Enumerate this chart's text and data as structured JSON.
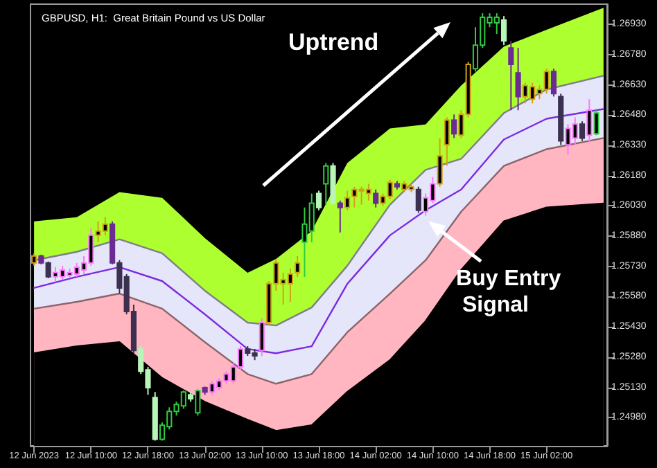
{
  "chart_data": {
    "type": "candlestick",
    "title": "GBPUSD, H1:  Great Britain Pound vs US Dollar",
    "annotations": [
      "Uptrend",
      {
        "text": "Buy Entry Signal",
        "x": "2023-06-14T09:00",
        "y": 1.25981
      }
    ],
    "xlim": [
      "2023-06-12T01:30",
      "2023-06-15T10:30"
    ],
    "xticks": [
      {
        "value": "2023-06-12T02:00",
        "label": "12 Jun 2023"
      },
      {
        "value": "2023-06-12T10:00",
        "label": "12 Jun 10:00"
      },
      {
        "value": "2023-06-12T18:00",
        "label": "12 Jun 18:00"
      },
      {
        "value": "2023-06-13T02:00",
        "label": "13 Jun 02:00"
      },
      {
        "value": "2023-06-13T10:00",
        "label": "13 Jun 10:00"
      },
      {
        "value": "2023-06-13T18:00",
        "label": "13 Jun 18:00"
      },
      {
        "value": "2023-06-14T02:00",
        "label": "14 Jun 02:00"
      },
      {
        "value": "2023-06-14T10:00",
        "label": "14 Jun 10:00"
      },
      {
        "value": "2023-06-14T18:00",
        "label": "14 Jun 18:00"
      },
      {
        "value": "2023-06-15T02:00",
        "label": "15 Jun 02:00"
      }
    ],
    "ylim": [
      1.2484,
      1.2703
    ],
    "yticks": [
      {
        "value": 1.2498,
        "label": "1.24980"
      },
      {
        "value": 1.2513,
        "label": "1.25130"
      },
      {
        "value": 1.2528,
        "label": "1.25280"
      },
      {
        "value": 1.2543,
        "label": "1.25430"
      },
      {
        "value": 1.2558,
        "label": "1.25580"
      },
      {
        "value": 1.2573,
        "label": "1.25730"
      },
      {
        "value": 1.2588,
        "label": "1.25880"
      },
      {
        "value": 1.2603,
        "label": "1.26030"
      },
      {
        "value": 1.2618,
        "label": "1.26180"
      },
      {
        "value": 1.2633,
        "label": "1.26330"
      },
      {
        "value": 1.2648,
        "label": "1.26480"
      },
      {
        "value": 1.2663,
        "label": "1.26630"
      },
      {
        "value": 1.2678,
        "label": "1.26780"
      },
      {
        "value": 1.2693,
        "label": "1.26930"
      }
    ],
    "series": [
      {
        "type": "area",
        "color": "#adff2f",
        "x": [
          "2023-06-12T02:00",
          "2023-06-12T08:00",
          "2023-06-12T14:00",
          "2023-06-12T20:00",
          "2023-06-13T02:00",
          "2023-06-13T08:00",
          "2023-06-13T12:00",
          "2023-06-13T17:00",
          "2023-06-13T22:00",
          "2023-06-14T04:00",
          "2023-06-14T09:00",
          "2023-06-14T14:00",
          "2023-06-14T20:00",
          "2023-06-15T02:00",
          "2023-06-15T10:00"
        ],
        "values": [
          1.25953,
          1.25974,
          1.26098,
          1.2607,
          1.2587,
          1.25698,
          1.25767,
          1.25905,
          1.26242,
          1.26414,
          1.26434,
          1.26627,
          1.2682,
          1.26903,
          1.27012
        ]
      },
      {
        "type": "area",
        "color": "#e6e6fa",
        "x": [
          "2023-06-12T02:00",
          "2023-06-12T08:00",
          "2023-06-12T14:00",
          "2023-06-12T20:00",
          "2023-06-13T02:00",
          "2023-06-13T08:00",
          "2023-06-13T12:00",
          "2023-06-13T17:00",
          "2023-06-13T22:00",
          "2023-06-14T04:00",
          "2023-06-14T09:00",
          "2023-06-14T14:00",
          "2023-06-14T20:00",
          "2023-06-15T02:00",
          "2023-06-15T10:00"
        ],
        "values": [
          1.2576,
          1.25802,
          1.25864,
          1.25795,
          1.25609,
          1.25451,
          1.25437,
          1.25526,
          1.25733,
          1.26036,
          1.26208,
          1.26263,
          1.2649,
          1.26607,
          1.26675
        ]
      },
      {
        "type": "area",
        "color": "#ffb6c1",
        "x": [
          "2023-06-12T02:00",
          "2023-06-12T08:00",
          "2023-06-12T14:00",
          "2023-06-12T20:00",
          "2023-06-13T02:00",
          "2023-06-13T08:00",
          "2023-06-13T12:00",
          "2023-06-13T17:00",
          "2023-06-13T22:00",
          "2023-06-14T04:00",
          "2023-06-14T09:00",
          "2023-06-14T14:00",
          "2023-06-14T20:00",
          "2023-06-15T02:00",
          "2023-06-15T10:00"
        ],
        "values": [
          1.2552,
          1.25554,
          1.25595,
          1.2552,
          1.25354,
          1.25196,
          1.25148,
          1.25196,
          1.25403,
          1.25595,
          1.2576,
          1.26001,
          1.26228,
          1.26311,
          1.26366
        ]
      },
      {
        "type": "area",
        "color": "#000000",
        "x": [
          "2023-06-12T02:00",
          "2023-06-12T08:00",
          "2023-06-12T14:00",
          "2023-06-12T20:00",
          "2023-06-13T02:00",
          "2023-06-13T08:00",
          "2023-06-13T12:00",
          "2023-06-13T17:00",
          "2023-06-13T22:00",
          "2023-06-14T04:00",
          "2023-06-14T09:00",
          "2023-06-14T14:00",
          "2023-06-14T20:00",
          "2023-06-15T02:00",
          "2023-06-15T10:00"
        ],
        "values": [
          1.25299,
          1.25334,
          1.25354,
          1.25176,
          1.25058,
          1.24969,
          1.24914,
          1.24942,
          1.25107,
          1.25265,
          1.25458,
          1.25712,
          1.25953,
          1.26022,
          1.26042
        ]
      },
      {
        "type": "line",
        "color": "#7b2be0",
        "x": [
          "2023-06-12T02:00",
          "2023-06-12T08:00",
          "2023-06-12T14:00",
          "2023-06-12T20:00",
          "2023-06-13T02:00",
          "2023-06-13T08:00",
          "2023-06-13T12:00",
          "2023-06-13T17:00",
          "2023-06-13T22:00",
          "2023-06-14T04:00",
          "2023-06-14T09:00",
          "2023-06-14T14:00",
          "2023-06-14T20:00",
          "2023-06-15T02:00",
          "2023-06-15T10:00"
        ],
        "values": [
          1.25623,
          1.25678,
          1.25726,
          1.25657,
          1.25492,
          1.2532,
          1.25299,
          1.25334,
          1.25643,
          1.25884,
          1.26008,
          1.26111,
          1.26359,
          1.26462,
          1.2651
        ]
      },
      {
        "x": [
          "2023-06-12T02:00",
          "2023-06-12T03:00",
          "2023-06-12T04:00",
          "2023-06-12T05:00",
          "2023-06-12T06:00",
          "2023-06-12T07:00",
          "2023-06-12T08:00",
          "2023-06-12T09:00",
          "2023-06-12T10:00",
          "2023-06-12T11:00",
          "2023-06-12T12:00",
          "2023-06-12T13:00",
          "2023-06-12T14:00",
          "2023-06-12T15:00",
          "2023-06-12T16:00",
          "2023-06-12T17:00",
          "2023-06-12T18:00",
          "2023-06-12T19:00",
          "2023-06-12T20:00",
          "2023-06-12T21:00",
          "2023-06-12T22:00",
          "2023-06-12T23:00",
          "2023-06-13T00:00",
          "2023-06-13T01:00",
          "2023-06-13T02:00",
          "2023-06-13T03:00",
          "2023-06-13T04:00",
          "2023-06-13T05:00",
          "2023-06-13T06:00",
          "2023-06-13T07:00",
          "2023-06-13T08:00",
          "2023-06-13T09:00",
          "2023-06-13T10:00",
          "2023-06-13T11:00",
          "2023-06-13T12:00",
          "2023-06-13T13:00",
          "2023-06-13T14:00",
          "2023-06-13T15:00",
          "2023-06-13T16:00",
          "2023-06-13T17:00",
          "2023-06-13T18:00",
          "2023-06-13T19:00",
          "2023-06-13T20:00",
          "2023-06-13T21:00",
          "2023-06-13T22:00",
          "2023-06-13T23:00",
          "2023-06-14T00:00",
          "2023-06-14T01:00",
          "2023-06-14T02:00",
          "2023-06-14T03:00",
          "2023-06-14T04:00",
          "2023-06-14T05:00",
          "2023-06-14T06:00",
          "2023-06-14T07:00",
          "2023-06-14T08:00",
          "2023-06-14T09:00",
          "2023-06-14T10:00",
          "2023-06-14T11:00",
          "2023-06-14T12:00",
          "2023-06-14T13:00",
          "2023-06-14T14:00",
          "2023-06-14T15:00",
          "2023-06-14T16:00",
          "2023-06-14T17:00",
          "2023-06-14T18:00",
          "2023-06-14T19:00",
          "2023-06-14T20:00",
          "2023-06-14T21:00",
          "2023-06-14T22:00",
          "2023-06-14T23:00",
          "2023-06-15T00:00",
          "2023-06-15T01:00",
          "2023-06-15T02:00",
          "2023-06-15T03:00",
          "2023-06-15T04:00",
          "2023-06-15T05:00",
          "2023-06-15T06:00",
          "2023-06-15T07:00",
          "2023-06-15T08:00",
          "2023-06-15T09:00"
        ],
        "colors": [
          "#d4a017",
          "#6a2c91",
          "#3b3050",
          "#ff77ff",
          "#ff77ff",
          "#ff77ff",
          "#ff77ff",
          "#ff77ff",
          "#ff77ff",
          "#d4a017",
          "#d4a017",
          "#6a2c91",
          "#3b3050",
          "#3b3050",
          "#3b3050",
          "#b8f5b8",
          "#b8f5b8",
          "#b8f5b8",
          "#2ecc40",
          "#2ecc40",
          "#2ecc40",
          "#2ecc40",
          "#b8f5b8",
          "#2ecc40",
          "#6a2c91",
          "#ff77ff",
          "#ff77ff",
          "#ff77ff",
          "#ff77ff",
          "#ff77ff",
          "#3b3050",
          "#3b3050",
          "#ff77ff",
          "#d4a017",
          "#d4a017",
          "#d4a017",
          "#d4a017",
          "#d4a017",
          "#2ecc40",
          "#2ecc40",
          "#b8f5b8",
          "#2ecc40",
          "#b8f5b8",
          "#6a2c91",
          "#d4a017",
          "#d4a017",
          "#d4a017",
          "#d4a017",
          "#6a2c91",
          "#d4a017",
          "#d4a017",
          "#6a2c91",
          "#d4a017",
          "#d4a017",
          "#3b3050",
          "#ff77ff",
          "#ff77ff",
          "#d4a017",
          "#d4a017",
          "#6a2c91",
          "#d4a017",
          "#d4a017",
          "#2ecc40",
          "#2ecc40",
          "#2ecc40",
          "#2ecc40",
          "#b8f5b8",
          "#6a2c91",
          "#6a2c91",
          "#d4a017",
          "#d4a017",
          "#d4a017",
          "#d4a017",
          "#6a2c91",
          "#3b3050",
          "#ff77ff",
          "#ff77ff",
          "#3b3050",
          "#ff77ff",
          "#2ecc40"
        ],
        "ohlc": [
          [
            1.25747,
            1.25795,
            1.25733,
            1.25781
          ],
          [
            1.25781,
            1.25788,
            1.2574,
            1.25747
          ],
          [
            1.25747,
            1.25754,
            1.25671,
            1.25678
          ],
          [
            1.25678,
            1.25726,
            1.25657,
            1.25699
          ],
          [
            1.25678,
            1.25733,
            1.25664,
            1.25712
          ],
          [
            1.25685,
            1.25719,
            1.25671,
            1.25699
          ],
          [
            1.25692,
            1.25747,
            1.25678,
            1.25726
          ],
          [
            1.25712,
            1.25781,
            1.25692,
            1.25747
          ],
          [
            1.25747,
            1.25919,
            1.25733,
            1.25884
          ],
          [
            1.25884,
            1.25953,
            1.2585,
            1.25905
          ],
          [
            1.25905,
            1.25974,
            1.25884,
            1.25939
          ],
          [
            1.25939,
            1.25953,
            1.2574,
            1.25747
          ],
          [
            1.25747,
            1.25761,
            1.25595,
            1.25623
          ],
          [
            1.25678,
            1.25692,
            1.25492,
            1.25506
          ],
          [
            1.25506,
            1.2554,
            1.253,
            1.25313
          ],
          [
            1.2532,
            1.25334,
            1.25196,
            1.2521
          ],
          [
            1.25217,
            1.25231,
            1.25093,
            1.25128
          ],
          [
            1.25079,
            1.25107,
            1.24866,
            1.24873
          ],
          [
            1.24873,
            1.24956,
            1.24866,
            1.24942
          ],
          [
            1.24935,
            1.25031,
            1.24921,
            1.25011
          ],
          [
            1.25011,
            1.25059,
            1.2499,
            1.25045
          ],
          [
            1.25038,
            1.25114,
            1.25024,
            1.25107
          ],
          [
            1.25093,
            1.25107,
            1.25059,
            1.25073
          ],
          [
            1.25004,
            1.25121,
            1.2499,
            1.25114
          ],
          [
            1.25128,
            1.25134,
            1.25093,
            1.25107
          ],
          [
            1.25107,
            1.25162,
            1.25093,
            1.25148
          ],
          [
            1.25128,
            1.25176,
            1.25114,
            1.25162
          ],
          [
            1.25162,
            1.2521,
            1.25148,
            1.25196
          ],
          [
            1.25162,
            1.25251,
            1.25148,
            1.25231
          ],
          [
            1.25231,
            1.25334,
            1.25217,
            1.2532
          ],
          [
            1.2532,
            1.25334,
            1.25286,
            1.253
          ],
          [
            1.253,
            1.2532,
            1.25265,
            1.25286
          ],
          [
            1.25313,
            1.25472,
            1.25286,
            1.25451
          ],
          [
            1.25451,
            1.25657,
            1.25437,
            1.25644
          ],
          [
            1.25644,
            1.25761,
            1.25609,
            1.25747
          ],
          [
            1.25644,
            1.25699,
            1.2554,
            1.25664
          ],
          [
            1.25644,
            1.25719,
            1.25554,
            1.25692
          ],
          [
            1.25699,
            1.25781,
            1.25678,
            1.25747
          ],
          [
            1.2585,
            1.26022,
            1.25678,
            1.25939
          ],
          [
            1.25905,
            1.26091,
            1.2585,
            1.26043
          ],
          [
            1.26091,
            1.26105,
            1.26008,
            1.26022
          ],
          [
            1.26139,
            1.26242,
            1.26036,
            1.26228
          ],
          [
            1.26228,
            1.26242,
            1.26036,
            1.26043
          ],
          [
            1.26043,
            1.26056,
            1.25898,
            1.26022
          ],
          [
            1.26022,
            1.26105,
            1.26008,
            1.2607
          ],
          [
            1.26077,
            1.26125,
            1.26022,
            1.26111
          ],
          [
            1.26105,
            1.26125,
            1.26036,
            1.26111
          ],
          [
            1.26091,
            1.26139,
            1.26056,
            1.26111
          ],
          [
            1.26091,
            1.26111,
            1.26022,
            1.26043
          ],
          [
            1.26043,
            1.26091,
            1.26029,
            1.26077
          ],
          [
            1.26077,
            1.2616,
            1.26063,
            1.26146
          ],
          [
            1.26139,
            1.26153,
            1.26111,
            1.26125
          ],
          [
            1.26111,
            1.26153,
            1.26098,
            1.26139
          ],
          [
            1.26111,
            1.26139,
            1.26098,
            1.26125
          ],
          [
            1.26111,
            1.26125,
            1.25995,
            1.26008
          ],
          [
            1.26001,
            1.26091,
            1.25981,
            1.2607
          ],
          [
            1.26056,
            1.26173,
            1.26043,
            1.26139
          ],
          [
            1.26139,
            1.26366,
            1.26125,
            1.26277
          ],
          [
            1.26332,
            1.26469,
            1.26228,
            1.26455
          ],
          [
            1.26455,
            1.26483,
            1.26366,
            1.26387
          ],
          [
            1.2638,
            1.26504,
            1.26366,
            1.26483
          ],
          [
            1.26483,
            1.26744,
            1.26469,
            1.26731
          ],
          [
            1.2671,
            1.26916,
            1.26696,
            1.26827
          ],
          [
            1.26827,
            1.26985,
            1.26813,
            1.26965
          ],
          [
            1.26937,
            1.26985,
            1.26916,
            1.26965
          ],
          [
            1.26937,
            1.26985,
            1.26882,
            1.26965
          ],
          [
            1.26951,
            1.26971,
            1.26827,
            1.26848
          ],
          [
            1.26813,
            1.26848,
            1.26504,
            1.26731
          ],
          [
            1.26689,
            1.26813,
            1.26504,
            1.26572
          ],
          [
            1.26572,
            1.26641,
            1.26538,
            1.26627
          ],
          [
            1.26559,
            1.26641,
            1.26538,
            1.26621
          ],
          [
            1.26586,
            1.26627,
            1.26559,
            1.26607
          ],
          [
            1.26607,
            1.2671,
            1.26586,
            1.26696
          ],
          [
            1.26696,
            1.2671,
            1.26572,
            1.26586
          ],
          [
            1.26572,
            1.26586,
            1.26332,
            1.26352
          ],
          [
            1.26332,
            1.26435,
            1.26283,
            1.26414
          ],
          [
            1.26366,
            1.26469,
            1.26332,
            1.26435
          ],
          [
            1.26435,
            1.26449,
            1.26352,
            1.26366
          ],
          [
            1.2638,
            1.26559,
            1.26345,
            1.26504
          ],
          [
            1.26387,
            1.26504,
            1.2638,
            1.2649
          ]
        ]
      }
    ]
  }
}
